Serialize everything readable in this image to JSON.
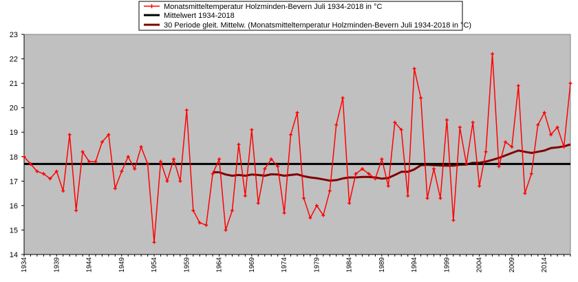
{
  "chart_data": {
    "type": "line",
    "title": "",
    "xlabel": "",
    "ylabel": "",
    "ylim": [
      14,
      23
    ],
    "yticks": [
      14,
      15,
      16,
      17,
      18,
      19,
      20,
      21,
      22,
      23
    ],
    "xrange": [
      1934,
      2018
    ],
    "xticks": [
      "1934",
      "1939",
      "1944",
      "1949",
      "1954",
      "1959",
      "1964",
      "1969",
      "1974",
      "1979",
      "1984",
      "1989",
      "1994",
      "1999",
      "2004",
      "2009",
      "2014"
    ],
    "grid": false,
    "legend_position": "top-left",
    "background": "#c0c0c0",
    "series": [
      {
        "name": "Monatsmitteltemperatur Holzminden-Bevern Juli 1934-2018 in °C",
        "color": "#ff0000",
        "marker": "plus",
        "x": [
          1934,
          1935,
          1936,
          1937,
          1938,
          1939,
          1940,
          1941,
          1942,
          1943,
          1944,
          1945,
          1946,
          1947,
          1948,
          1949,
          1950,
          1951,
          1952,
          1953,
          1954,
          1955,
          1956,
          1957,
          1958,
          1959,
          1960,
          1961,
          1962,
          1963,
          1964,
          1965,
          1966,
          1967,
          1968,
          1969,
          1970,
          1971,
          1972,
          1973,
          1974,
          1975,
          1976,
          1977,
          1978,
          1979,
          1980,
          1981,
          1982,
          1983,
          1984,
          1985,
          1986,
          1987,
          1988,
          1989,
          1990,
          1991,
          1992,
          1993,
          1994,
          1995,
          1996,
          1997,
          1998,
          1999,
          2000,
          2001,
          2002,
          2003,
          2004,
          2005,
          2006,
          2007,
          2008,
          2009,
          2010,
          2011,
          2012,
          2013,
          2014,
          2015,
          2016,
          2017,
          2018
        ],
        "values": [
          18.0,
          17.7,
          17.4,
          17.3,
          17.1,
          17.4,
          16.6,
          18.9,
          15.8,
          18.2,
          17.8,
          17.8,
          18.6,
          18.9,
          16.7,
          17.4,
          18.0,
          17.5,
          18.4,
          17.7,
          14.5,
          17.8,
          17.0,
          17.9,
          17.0,
          19.9,
          15.8,
          15.3,
          15.2,
          17.3,
          17.9,
          15.0,
          15.8,
          18.5,
          16.4,
          19.1,
          16.1,
          17.5,
          17.9,
          17.6,
          15.7,
          18.9,
          19.8,
          16.3,
          15.5,
          16.0,
          15.6,
          16.6,
          19.3,
          20.4,
          16.1,
          17.3,
          17.5,
          17.3,
          17.1,
          17.9,
          16.8,
          19.4,
          19.1,
          16.4,
          21.6,
          20.4,
          16.3,
          17.5,
          16.3,
          19.5,
          15.4,
          19.2,
          17.7,
          19.4,
          16.8,
          18.2,
          22.2,
          17.6,
          18.6,
          18.4,
          20.9,
          16.5,
          17.3,
          19.3,
          19.8,
          18.9,
          19.2,
          18.4,
          21.0
        ]
      },
      {
        "name": "Mittelwert 1934-2018",
        "color": "#000000",
        "x": [
          1934,
          2018
        ],
        "values": [
          17.7,
          17.7
        ]
      },
      {
        "name": "30 Periode gleit. Mittelw. (Monatsmitteltemperatur Holzminden-Bevern Juli 1934-2018 in °C)",
        "color": "#800000",
        "x": [
          1963,
          1964,
          1965,
          1966,
          1967,
          1968,
          1969,
          1970,
          1971,
          1972,
          1973,
          1974,
          1975,
          1976,
          1977,
          1978,
          1979,
          1980,
          1981,
          1982,
          1983,
          1984,
          1985,
          1986,
          1987,
          1988,
          1989,
          1990,
          1991,
          1992,
          1993,
          1994,
          1995,
          1996,
          1997,
          1998,
          1999,
          2000,
          2001,
          2002,
          2003,
          2004,
          2005,
          2006,
          2007,
          2008,
          2009,
          2010,
          2011,
          2012,
          2013,
          2014,
          2015,
          2016,
          2017,
          2018
        ],
        "values": [
          17.37,
          17.36,
          17.27,
          17.22,
          17.25,
          17.22,
          17.27,
          17.25,
          17.22,
          17.28,
          17.27,
          17.22,
          17.25,
          17.28,
          17.2,
          17.15,
          17.12,
          17.07,
          17.02,
          17.04,
          17.11,
          17.15,
          17.15,
          17.17,
          17.17,
          17.15,
          17.1,
          17.13,
          17.25,
          17.38,
          17.38,
          17.48,
          17.65,
          17.67,
          17.65,
          17.64,
          17.63,
          17.63,
          17.67,
          17.68,
          17.75,
          17.75,
          17.8,
          17.87,
          17.95,
          18.05,
          18.15,
          18.25,
          18.2,
          18.15,
          18.2,
          18.25,
          18.35,
          18.38,
          18.42,
          18.5
        ]
      }
    ]
  }
}
